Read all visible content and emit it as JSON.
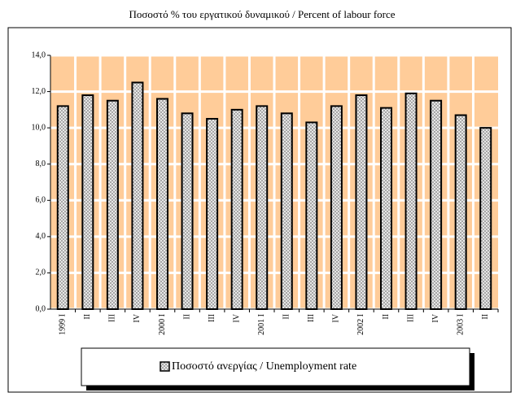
{
  "chart_data": {
    "type": "bar",
    "title": "Ποσοστό % του εργατικού δυναμικού / Percent of labour force",
    "categories": [
      "1999 I",
      "II",
      "III",
      "IV",
      "2000 I",
      "II",
      "III",
      "IV",
      "2001 I",
      "II",
      "III",
      "IV",
      "2002 I",
      "II",
      "III",
      "IV",
      "2003 I",
      "II"
    ],
    "series": [
      {
        "name": "Ποσοστό ανεργίας / Unemployment rate",
        "color": "#a0a0a0",
        "values": [
          11.2,
          11.8,
          11.5,
          12.5,
          11.6,
          10.8,
          10.5,
          11.0,
          11.2,
          10.8,
          10.3,
          11.2,
          11.8,
          11.1,
          11.9,
          11.5,
          10.7,
          10.0
        ]
      }
    ],
    "ylim": [
      0,
      14
    ],
    "yticks": [
      {
        "value": 0,
        "label": "0,0"
      },
      {
        "value": 2,
        "label": "2,0"
      },
      {
        "value": 4,
        "label": "4,0"
      },
      {
        "value": 6,
        "label": "6,0"
      },
      {
        "value": 8,
        "label": "8,0"
      },
      {
        "value": 10,
        "label": "10,0"
      },
      {
        "value": 12,
        "label": "12,0"
      },
      {
        "value": 14,
        "label": "14,0"
      }
    ],
    "grid": true,
    "plot_background": "#ffcc99"
  }
}
